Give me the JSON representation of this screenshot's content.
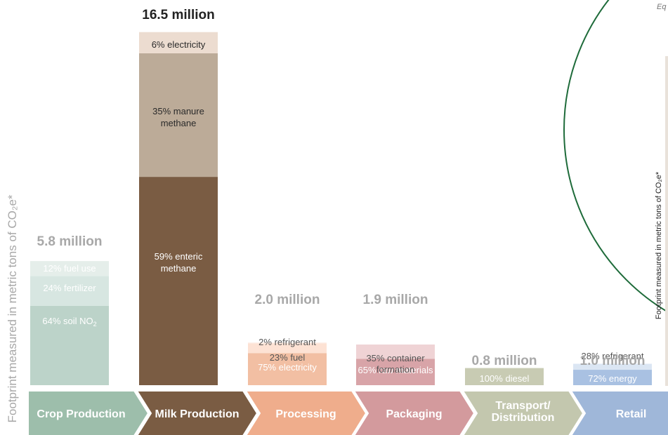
{
  "colors": {
    "crop": "#9dbeab",
    "milk": "#7a5c43",
    "processing": "#efad8c",
    "packaging": "#d39a9d",
    "transport": "#c3c7ae",
    "retail": "#9fb7d9",
    "inset_circle": "#1e6b3a"
  },
  "yaxis_label": "Footprint measured in metric tons of CO₂e*",
  "inset": {
    "corner_text": "Eq",
    "yaxis_label": "Footprint measured in metric tons of CO₂e*"
  },
  "chart_data": {
    "type": "bar",
    "stacked": true,
    "categories": [
      "Crop Production",
      "Milk Production",
      "Processing",
      "Packaging",
      "Transport/ Distribution",
      "Retail"
    ],
    "totals": [
      5.8,
      16.5,
      2.0,
      1.9,
      0.8,
      1.0
    ],
    "total_labels": [
      "5.8 million",
      "16.5 million",
      "2.0 million",
      "1.9 million",
      "0.8 million",
      "1.0 million"
    ],
    "ylabel": "Footprint measured in metric tons of CO₂e*",
    "segments": [
      [
        {
          "label": "64% soil NO₂",
          "percent": 64
        },
        {
          "label": "24% fertilizer",
          "percent": 24
        },
        {
          "label": "12% fuel use",
          "percent": 12
        }
      ],
      [
        {
          "label": "59% enteric methane",
          "percent": 59
        },
        {
          "label": "35% manure methane",
          "percent": 35
        },
        {
          "label": "6% electricity",
          "percent": 6
        }
      ],
      [
        {
          "label": "75% electricity",
          "percent": 75
        },
        {
          "label": "23% fuel",
          "percent": 23
        },
        {
          "label": "2% refrigerant",
          "percent": 2
        }
      ],
      [
        {
          "label": "65% raw materials",
          "percent": 65
        },
        {
          "label": "35% container formation",
          "percent": 35
        }
      ],
      [
        {
          "label": "100% diesel",
          "percent": 100
        }
      ],
      [
        {
          "label": "72% energy",
          "percent": 72
        },
        {
          "label": "28% refrigerant",
          "percent": 28
        }
      ]
    ]
  }
}
